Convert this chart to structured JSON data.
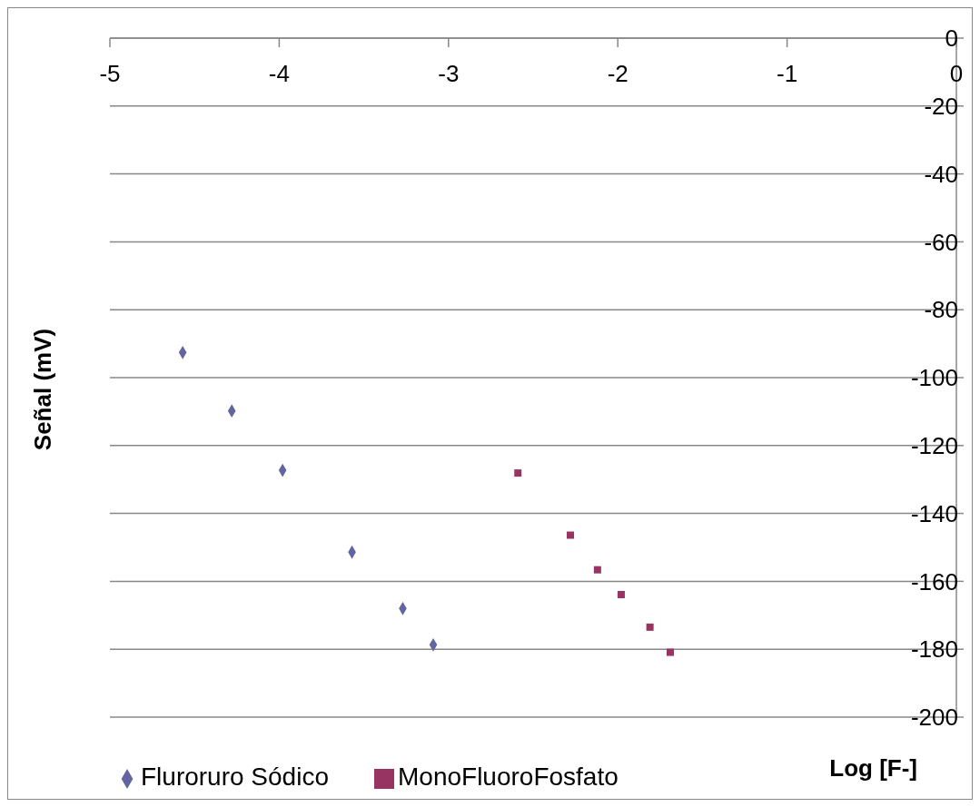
{
  "chart_data": {
    "type": "scatter",
    "xlabel": "Log [F-]",
    "ylabel": "Señal (mV)",
    "xlim": [
      -5,
      0
    ],
    "xticks": [
      -5,
      -4,
      -3,
      -2,
      -1,
      0
    ],
    "ylim": [
      -200,
      0
    ],
    "yticks": [
      -200,
      -180,
      -160,
      -140,
      -120,
      -100,
      -80,
      -60,
      -40,
      -20,
      0
    ],
    "grid": "y",
    "legend": "bottom left",
    "series": [
      {
        "name": "Fluroruro Sódico",
        "color": "#6464a0",
        "marker": "diamond",
        "x": [
          -4.57,
          -4.28,
          -3.98,
          -3.57,
          -3.27,
          -3.09
        ],
        "values": [
          -92.6,
          -109.8,
          -127.3,
          -151.4,
          -168,
          -178.7
        ]
      },
      {
        "name": "MonoFluoroFosfato",
        "color": "#983462",
        "marker": "square",
        "x": [
          -2.59,
          -2.28,
          -2.12,
          -1.98,
          -1.81,
          -1.69
        ],
        "values": [
          -128.1,
          -146.4,
          -156.6,
          -163.9,
          -173.5,
          -180.9
        ]
      }
    ]
  }
}
